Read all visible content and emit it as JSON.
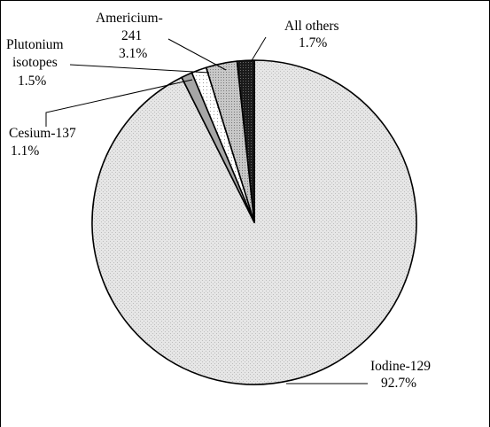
{
  "chart_data": {
    "type": "pie",
    "title": "",
    "slices": [
      {
        "label_lines": [
          "Iodine-129"
        ],
        "value": 92.7,
        "value_label": "92.7%",
        "fill": "light-dotted-gray"
      },
      {
        "label_lines": [
          "Cesium-137"
        ],
        "value": 1.1,
        "value_label": "1.1%",
        "fill": "medium-gray"
      },
      {
        "label_lines": [
          "Plutonium",
          "isotopes"
        ],
        "value": 1.5,
        "value_label": "1.5%",
        "fill": "white-dotted"
      },
      {
        "label_lines": [
          "Americium-",
          "241"
        ],
        "value": 3.1,
        "value_label": "3.1%",
        "fill": "gray-dotted"
      },
      {
        "label_lines": [
          "All others"
        ],
        "value": 1.7,
        "value_label": "1.7%",
        "fill": "black-dotted"
      }
    ],
    "start_angle_note": "slices start at 12 o'clock going counter-clockwise from All others",
    "legend": "none (labels with leader lines)"
  }
}
